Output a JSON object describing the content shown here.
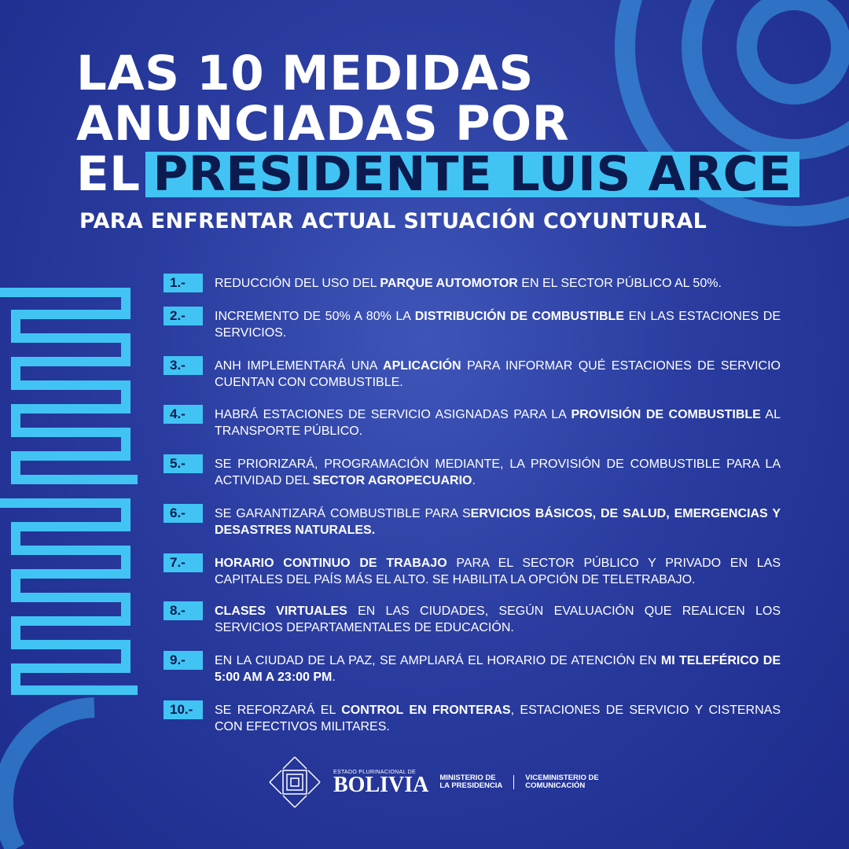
{
  "title": {
    "line1": "LAS 10 MEDIDAS",
    "line2": "ANUNCIADAS POR",
    "line3_prefix": "EL",
    "line3_highlight": "PRESIDENTE LUIS ARCE"
  },
  "subtitle": "PARA ENFRENTAR ACTUAL SITUACIÓN COYUNTURAL",
  "colors": {
    "accent": "#41c4f4",
    "background": "#2a3c9f",
    "badge_text": "#0b1a4f"
  },
  "items": [
    {
      "num": "1.-",
      "segments": [
        {
          "t": "REDUCCIÓN DEL USO DEL ",
          "b": false
        },
        {
          "t": "PARQUE AUTOMOTOR",
          "b": true
        },
        {
          "t": " EN EL SECTOR PÚBLICO AL 50%.",
          "b": false
        }
      ]
    },
    {
      "num": "2.-",
      "segments": [
        {
          "t": "INCREMENTO DE 50% A 80% LA ",
          "b": false
        },
        {
          "t": "DISTRIBUCIÓN DE COMBUSTIBLE",
          "b": true
        },
        {
          "t": " EN LAS ESTACIONES DE SERVICIOS.",
          "b": false
        }
      ]
    },
    {
      "num": "3.-",
      "segments": [
        {
          "t": "ANH IMPLEMENTARÁ UNA ",
          "b": false
        },
        {
          "t": "APLICACIÓN",
          "b": true
        },
        {
          "t": " PARA INFORMAR QUÉ ESTACIONES DE SERVICIO CUENTAN CON COMBUSTIBLE.",
          "b": false
        }
      ]
    },
    {
      "num": "4.-",
      "segments": [
        {
          "t": "HABRÁ ESTACIONES DE SERVICIO ASIGNADAS PARA LA ",
          "b": false
        },
        {
          "t": "PROVISIÓN DE COMBUSTIBLE",
          "b": true
        },
        {
          "t": " AL TRANSPORTE PÚBLICO.",
          "b": false
        }
      ]
    },
    {
      "num": "5.-",
      "segments": [
        {
          "t": "SE PRIORIZARÁ, PROGRAMACIÓN MEDIANTE, LA PROVISIÓN DE COMBUSTIBLE PARA LA ACTIVIDAD DEL ",
          "b": false
        },
        {
          "t": "SECTOR AGROPECUARIO",
          "b": true
        },
        {
          "t": ".",
          "b": false
        }
      ]
    },
    {
      "num": "6.-",
      "segments": [
        {
          "t": "SE GARANTIZARÁ COMBUSTIBLE PARA S",
          "b": false
        },
        {
          "t": "ERVICIOS BÁSICOS, DE SALUD, EMERGENCIAS Y DESASTRES NATURALES.",
          "b": true
        }
      ]
    },
    {
      "num": "7.-",
      "segments": [
        {
          "t": "HORARIO CONTINUO DE TRABAJO",
          "b": true
        },
        {
          "t": " PARA EL SECTOR PÚBLICO Y PRIVADO EN LAS CAPITALES DEL PAÍS MÁS EL ALTO. SE HABILITA LA OPCIÓN DE TELETRABAJO.",
          "b": false
        }
      ]
    },
    {
      "num": "8.-",
      "segments": [
        {
          "t": "CLASES VIRTUALES",
          "b": true
        },
        {
          "t": " EN LAS CIUDADES, SEGÚN EVALUACIÓN QUE REALICEN LOS SERVICIOS DEPARTAMENTALES DE EDUCACIÓN.",
          "b": false
        }
      ]
    },
    {
      "num": "9.-",
      "segments": [
        {
          "t": "EN LA CIUDAD DE LA PAZ, SE AMPLIARÁ EL HORARIO DE ATENCIÓN EN ",
          "b": false
        },
        {
          "t": "MI TELEFÉRICO DE 5:00 AM A 23:00 PM",
          "b": true
        },
        {
          "t": ".",
          "b": false
        }
      ]
    },
    {
      "num": "10.-",
      "segments": [
        {
          "t": "SE REFORZARÁ EL ",
          "b": false
        },
        {
          "t": "CONTROL EN FRONTERAS",
          "b": true
        },
        {
          "t": ", ESTACIONES DE SERVICIO Y CISTERNAS CON EFECTIVOS MILITARES.",
          "b": false
        }
      ]
    }
  ],
  "footer": {
    "bolivia_small": "ESTADO PLURINACIONAL DE",
    "bolivia": "BOLIVIA",
    "ministry_1": "MINISTERIO DE",
    "ministry_2": "LA PRESIDENCIA",
    "vice_1": "VICEMINISTERIO DE",
    "vice_2": "COMUNICACIÓN"
  }
}
